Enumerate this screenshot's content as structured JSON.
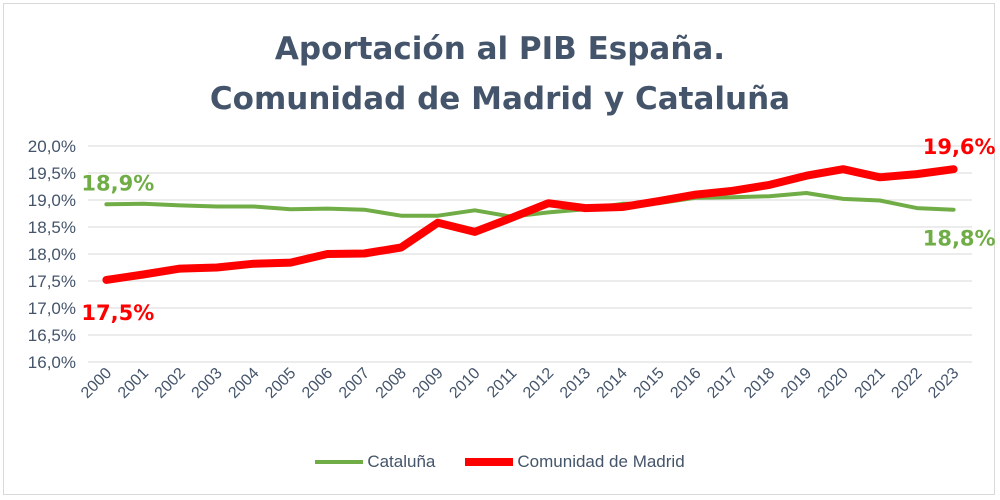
{
  "chart_data": {
    "type": "line",
    "title_line1": "Aportación al PIB España.",
    "title_line2": "Comunidad de Madrid y Cataluña",
    "x": [
      "2000",
      "2001",
      "2002",
      "2003",
      "2004",
      "2005",
      "2006",
      "2007",
      "2008",
      "2009",
      "2010",
      "2011",
      "2012",
      "2013",
      "2014",
      "2015",
      "2016",
      "2017",
      "2018",
      "2019",
      "2020",
      "2021",
      "2022",
      "2023"
    ],
    "ylim": [
      16.0,
      20.0
    ],
    "yticks": [
      "16,0%",
      "16,5%",
      "17,0%",
      "17,5%",
      "18,0%",
      "18,5%",
      "19,0%",
      "19,5%",
      "20,0%"
    ],
    "grid": true,
    "legend_position": "bottom",
    "series": [
      {
        "name": "Cataluña",
        "color": "#70ad47",
        "values": [
          18.92,
          18.93,
          18.9,
          18.88,
          18.88,
          18.83,
          18.84,
          18.82,
          18.71,
          18.71,
          18.81,
          18.69,
          18.77,
          18.83,
          18.93,
          18.94,
          19.04,
          19.05,
          19.07,
          19.13,
          19.02,
          18.99,
          18.85,
          18.82
        ],
        "start_label": "18,9%",
        "end_label": "18,8%"
      },
      {
        "name": "Comunidad de Madrid",
        "color": "#ff0000",
        "values": [
          17.52,
          17.62,
          17.73,
          17.75,
          17.82,
          17.84,
          18.0,
          18.01,
          18.12,
          18.58,
          18.41,
          18.67,
          18.94,
          18.85,
          18.87,
          18.98,
          19.1,
          19.17,
          19.28,
          19.45,
          19.57,
          19.42,
          19.48,
          19.57
        ],
        "start_label": "17,5%",
        "end_label": "19,6%"
      }
    ]
  }
}
